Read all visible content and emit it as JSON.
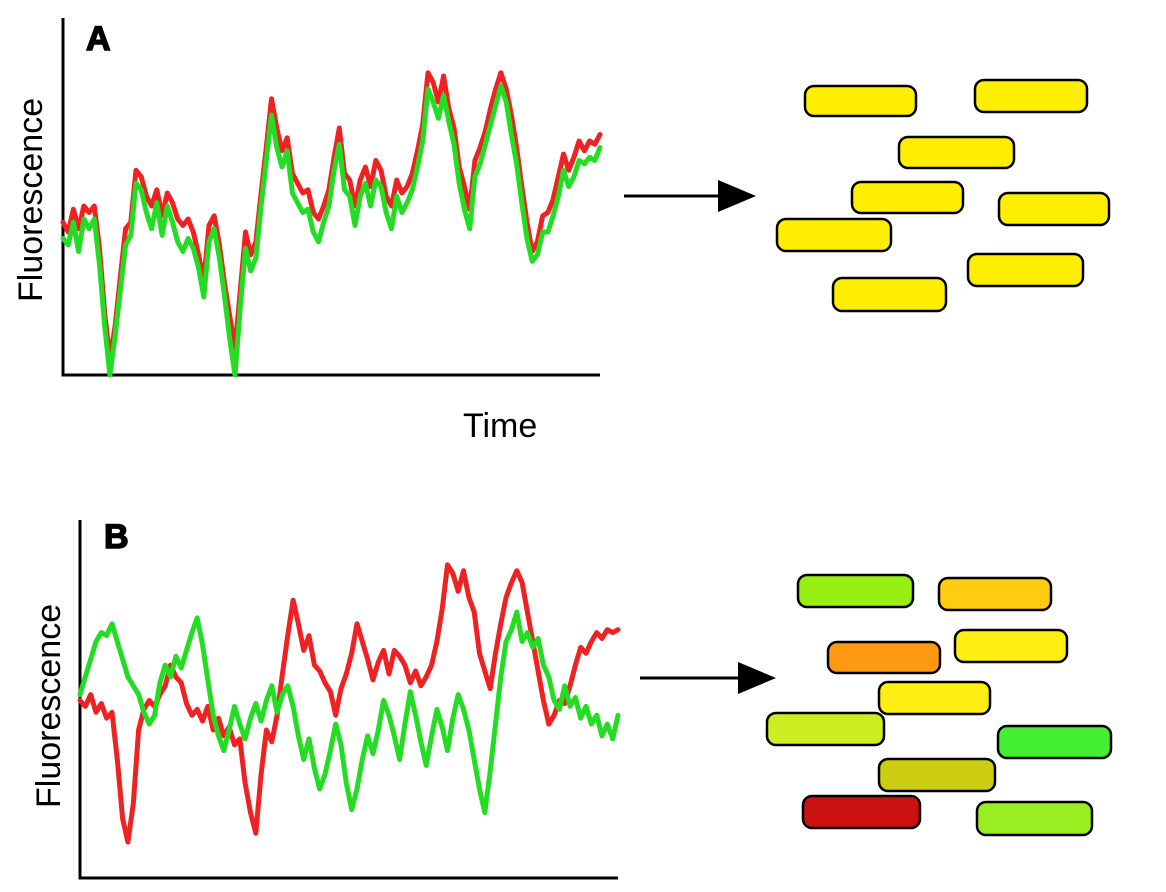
{
  "panels": [
    {
      "id": "A",
      "label": "A",
      "ylabel": "Fluorescence",
      "xlabel": "Time",
      "series": [
        {
          "color": "#ee2222",
          "values": [
            0.47,
            0.44,
            0.51,
            0.45,
            0.52,
            0.5,
            0.52,
            0.39,
            0.19,
            0.05,
            0.15,
            0.3,
            0.45,
            0.47,
            0.63,
            0.61,
            0.55,
            0.52,
            0.57,
            0.49,
            0.56,
            0.53,
            0.48,
            0.46,
            0.48,
            0.44,
            0.37,
            0.29,
            0.46,
            0.49,
            0.4,
            0.28,
            0.18,
            0.08,
            0.26,
            0.44,
            0.37,
            0.41,
            0.56,
            0.7,
            0.85,
            0.76,
            0.69,
            0.73,
            0.62,
            0.59,
            0.56,
            0.57,
            0.5,
            0.48,
            0.52,
            0.57,
            0.67,
            0.76,
            0.62,
            0.6,
            0.52,
            0.6,
            0.64,
            0.58,
            0.66,
            0.63,
            0.55,
            0.52,
            0.6,
            0.56,
            0.58,
            0.62,
            0.69,
            0.77,
            0.93,
            0.9,
            0.84,
            0.92,
            0.82,
            0.76,
            0.64,
            0.58,
            0.51,
            0.66,
            0.7,
            0.75,
            0.82,
            0.88,
            0.93,
            0.88,
            0.8,
            0.7,
            0.58,
            0.47,
            0.38,
            0.41,
            0.49,
            0.5,
            0.54,
            0.61,
            0.68,
            0.63,
            0.67,
            0.72,
            0.69,
            0.72,
            0.71,
            0.74
          ]
        },
        {
          "color": "#22dd22",
          "values": [
            0.42,
            0.4,
            0.47,
            0.38,
            0.48,
            0.45,
            0.48,
            0.34,
            0.15,
            0.0,
            0.12,
            0.26,
            0.4,
            0.43,
            0.59,
            0.57,
            0.5,
            0.45,
            0.53,
            0.43,
            0.52,
            0.47,
            0.41,
            0.38,
            0.42,
            0.39,
            0.33,
            0.24,
            0.41,
            0.45,
            0.36,
            0.24,
            0.11,
            0.0,
            0.21,
            0.39,
            0.32,
            0.36,
            0.52,
            0.66,
            0.8,
            0.7,
            0.64,
            0.69,
            0.56,
            0.53,
            0.5,
            0.51,
            0.44,
            0.41,
            0.47,
            0.52,
            0.63,
            0.71,
            0.57,
            0.55,
            0.46,
            0.55,
            0.59,
            0.52,
            0.6,
            0.58,
            0.5,
            0.45,
            0.55,
            0.5,
            0.53,
            0.57,
            0.64,
            0.72,
            0.88,
            0.84,
            0.79,
            0.86,
            0.78,
            0.71,
            0.59,
            0.51,
            0.45,
            0.61,
            0.65,
            0.71,
            0.77,
            0.83,
            0.89,
            0.84,
            0.74,
            0.65,
            0.53,
            0.42,
            0.35,
            0.37,
            0.44,
            0.44,
            0.49,
            0.55,
            0.63,
            0.58,
            0.61,
            0.66,
            0.65,
            0.67,
            0.66,
            0.7
          ]
        }
      ],
      "cells": [
        {
          "color": "#ffee00"
        },
        {
          "color": "#ffee00"
        },
        {
          "color": "#ffee00"
        },
        {
          "color": "#ffee00"
        },
        {
          "color": "#ffee00"
        },
        {
          "color": "#ffee00"
        },
        {
          "color": "#ffee00"
        },
        {
          "color": "#ffee00"
        }
      ]
    },
    {
      "id": "B",
      "label": "B",
      "ylabel": "Fluorescence",
      "xlabel": "",
      "series": [
        {
          "color": "#ee2222",
          "values": [
            0.5,
            0.48,
            0.52,
            0.46,
            0.49,
            0.44,
            0.46,
            0.3,
            0.1,
            0.02,
            0.15,
            0.4,
            0.47,
            0.5,
            0.48,
            0.52,
            0.55,
            0.62,
            0.58,
            0.56,
            0.49,
            0.45,
            0.47,
            0.43,
            0.48,
            0.4,
            0.44,
            0.38,
            0.41,
            0.35,
            0.37,
            0.22,
            0.12,
            0.05,
            0.25,
            0.4,
            0.36,
            0.45,
            0.59,
            0.72,
            0.84,
            0.76,
            0.67,
            0.72,
            0.62,
            0.6,
            0.56,
            0.53,
            0.45,
            0.54,
            0.59,
            0.66,
            0.76,
            0.7,
            0.64,
            0.57,
            0.63,
            0.67,
            0.59,
            0.67,
            0.65,
            0.62,
            0.56,
            0.6,
            0.55,
            0.58,
            0.62,
            0.7,
            0.81,
            0.96,
            0.93,
            0.87,
            0.94,
            0.85,
            0.8,
            0.66,
            0.6,
            0.54,
            0.66,
            0.76,
            0.85,
            0.9,
            0.94,
            0.9,
            0.8,
            0.7,
            0.6,
            0.5,
            0.42,
            0.45,
            0.5,
            0.49,
            0.55,
            0.62,
            0.68,
            0.66,
            0.7,
            0.73,
            0.71,
            0.74,
            0.73,
            0.74
          ]
        },
        {
          "color": "#22dd22",
          "values": [
            0.52,
            0.58,
            0.64,
            0.7,
            0.73,
            0.72,
            0.76,
            0.7,
            0.64,
            0.58,
            0.55,
            0.52,
            0.46,
            0.42,
            0.45,
            0.56,
            0.62,
            0.58,
            0.65,
            0.61,
            0.67,
            0.73,
            0.78,
            0.69,
            0.57,
            0.45,
            0.38,
            0.33,
            0.4,
            0.48,
            0.42,
            0.37,
            0.44,
            0.49,
            0.43,
            0.5,
            0.55,
            0.46,
            0.52,
            0.55,
            0.48,
            0.38,
            0.3,
            0.37,
            0.27,
            0.2,
            0.25,
            0.33,
            0.42,
            0.35,
            0.22,
            0.13,
            0.2,
            0.3,
            0.38,
            0.32,
            0.4,
            0.5,
            0.45,
            0.38,
            0.3,
            0.42,
            0.53,
            0.45,
            0.36,
            0.28,
            0.38,
            0.47,
            0.41,
            0.33,
            0.44,
            0.52,
            0.47,
            0.4,
            0.3,
            0.2,
            0.12,
            0.26,
            0.42,
            0.58,
            0.7,
            0.74,
            0.8,
            0.7,
            0.73,
            0.68,
            0.71,
            0.62,
            0.58,
            0.5,
            0.47,
            0.55,
            0.48,
            0.51,
            0.44,
            0.48,
            0.42,
            0.45,
            0.38,
            0.42,
            0.37,
            0.45
          ]
        }
      ],
      "cells": [
        {
          "color": "#99ee11"
        },
        {
          "color": "#ffcc11"
        },
        {
          "color": "#ff9911"
        },
        {
          "color": "#ffee11"
        },
        {
          "color": "#ffee11"
        },
        {
          "color": "#ccee22"
        },
        {
          "color": "#44ee33"
        },
        {
          "color": "#cccc11"
        },
        {
          "color": "#cc1111"
        },
        {
          "color": "#99ee22"
        }
      ]
    }
  ]
}
